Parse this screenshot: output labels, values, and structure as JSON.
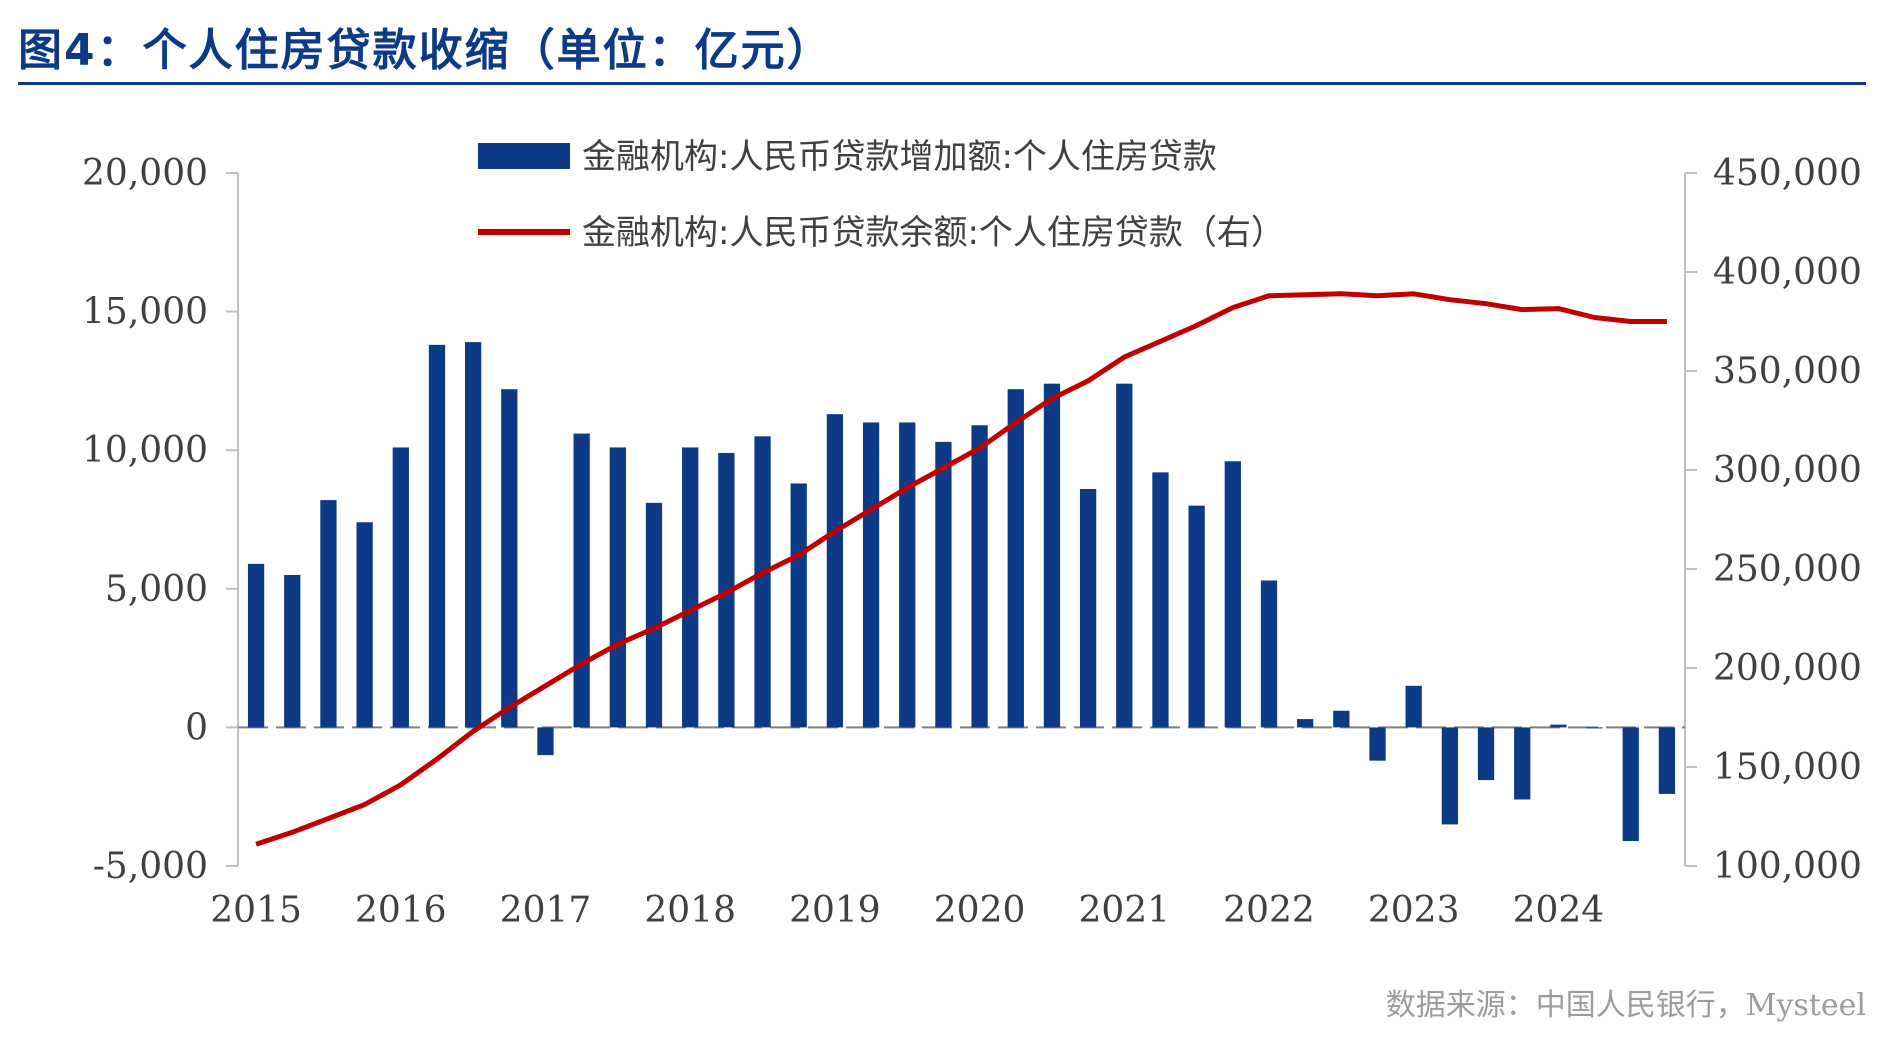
{
  "title": "图4：个人住房贷款收缩（单位：亿元）",
  "source": "数据来源：中国人民银行，Mysteel",
  "colors": {
    "bar": "#0c3a86",
    "line": "#c00000",
    "axis": "#bfbfbf",
    "text": "#404040",
    "title": "#0c3a86"
  },
  "chart_data": {
    "type": "bar",
    "x_tick_labels": [
      "2015",
      "2016",
      "2017",
      "2018",
      "2019",
      "2020",
      "2021",
      "2022",
      "2023",
      "2024"
    ],
    "y_left": {
      "range": [
        -5000,
        20000
      ],
      "ticks": [
        "-5,000",
        "0",
        "5,000",
        "10,000",
        "15,000",
        "20,000"
      ],
      "tick_values": [
        -5000,
        0,
        5000,
        10000,
        15000,
        20000
      ]
    },
    "y_right": {
      "range": [
        100000,
        450000
      ],
      "ticks": [
        "100,000",
        "150,000",
        "200,000",
        "250,000",
        "300,000",
        "350,000",
        "400,000",
        "450,000"
      ],
      "tick_values": [
        100000,
        150000,
        200000,
        250000,
        300000,
        350000,
        400000,
        450000
      ]
    },
    "legend_placement": "top-center",
    "grid": false,
    "series": [
      {
        "name": "金融机构:人民币贷款增加额:个人住房贷款",
        "type": "bar",
        "axis": "left",
        "values": [
          5900,
          5500,
          8200,
          7400,
          10100,
          13800,
          13900,
          12200,
          -1000,
          10600,
          10100,
          8100,
          10100,
          9900,
          10500,
          8800,
          11300,
          11000,
          11000,
          10300,
          10900,
          12200,
          12400,
          8600,
          12400,
          9200,
          8000,
          9600,
          5300,
          300,
          600,
          -1200,
          1500,
          -3500,
          -1900,
          -2600,
          100,
          0,
          -4100,
          -2400
        ]
      },
      {
        "name": "金融机构:人民币贷款余额:个人住房贷款（右）",
        "type": "line",
        "axis": "right",
        "values": [
          111000,
          117000,
          124000,
          131000,
          141000,
          154000,
          168000,
          180000,
          191000,
          202000,
          212000,
          220000,
          229000,
          238000,
          248000,
          257000,
          269000,
          280000,
          291000,
          301000,
          311000,
          324000,
          336000,
          345000,
          357000,
          365000,
          373000,
          382000,
          388000,
          388500,
          389000,
          388000,
          389000,
          386000,
          384000,
          381000,
          381500,
          377000,
          375000,
          375000
        ]
      }
    ]
  }
}
